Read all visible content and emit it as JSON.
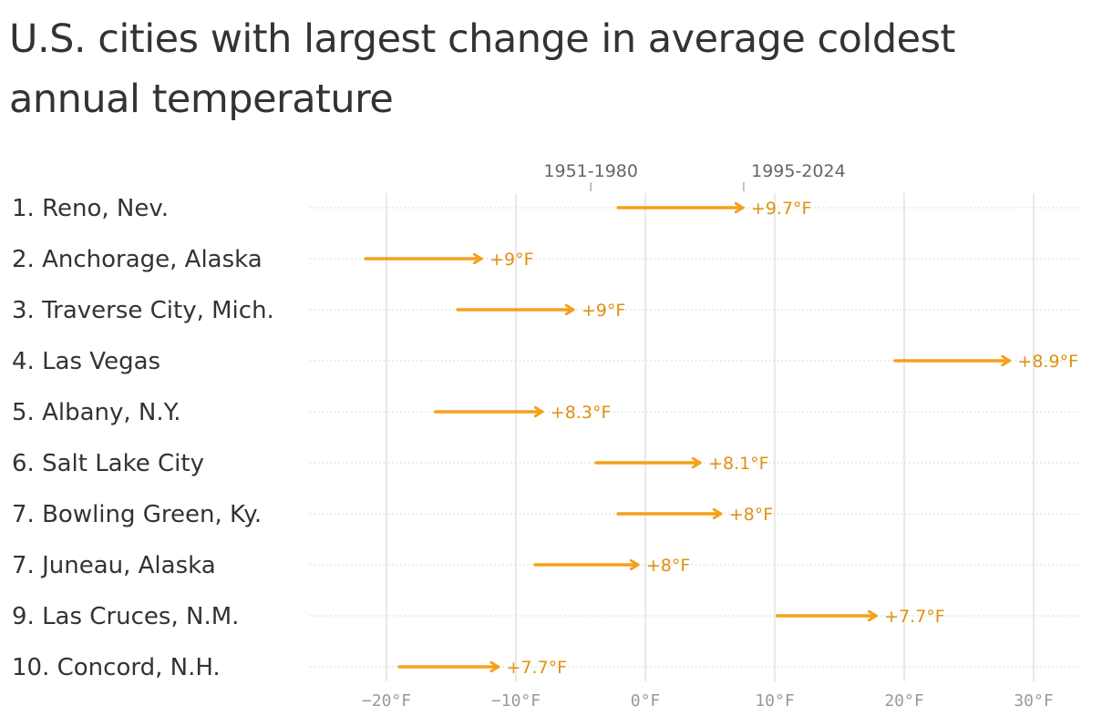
{
  "chart_data": {
    "type": "arrow",
    "title": "U.S. cities with largest change in average coldest annual temperature",
    "series_labels": {
      "start": "1951-1980",
      "end": "1995-2024"
    },
    "x_ticks": [
      {
        "value": -20,
        "label": "−20°F"
      },
      {
        "value": -10,
        "label": "−10°F"
      },
      {
        "value": 0,
        "label": "0°F"
      },
      {
        "value": 10,
        "label": "10°F"
      },
      {
        "value": 20,
        "label": "20°F"
      },
      {
        "value": 30,
        "label": "30°F"
      }
    ],
    "xlim": [
      -26,
      33
    ],
    "rows": [
      {
        "label": "1. Reno, Nev.",
        "start": -2.1,
        "end": 7.6,
        "change": "+9.7°F"
      },
      {
        "label": "2. Anchorage, Alaska",
        "start": -21.6,
        "end": -12.6,
        "change": "+9°F"
      },
      {
        "label": "3. Traverse City, Mich.",
        "start": -14.5,
        "end": -5.5,
        "change": "+9°F"
      },
      {
        "label": "4. Las Vegas",
        "start": 19.3,
        "end": 28.2,
        "change": "+8.9°F"
      },
      {
        "label": "5. Albany, N.Y.",
        "start": -16.2,
        "end": -7.9,
        "change": "+8.3°F"
      },
      {
        "label": "6. Salt Lake City",
        "start": -3.8,
        "end": 4.3,
        "change": "+8.1°F"
      },
      {
        "label": "7. Bowling Green, Ky.",
        "start": -2.1,
        "end": 5.9,
        "change": "+8°F"
      },
      {
        "label": "7. Juneau, Alaska",
        "start": -8.5,
        "end": -0.5,
        "change": "+8°F"
      },
      {
        "label": "9. Las Cruces, N.M.",
        "start": 10.2,
        "end": 17.9,
        "change": "+7.7°F"
      },
      {
        "label": "10. Concord, N.H.",
        "start": -19.0,
        "end": -11.3,
        "change": "+7.7°F"
      }
    ],
    "colors": {
      "arrow": "#f5a01a",
      "value_label": "#e0900f",
      "gridline": "#e2e2e2",
      "rowline": "#cfcfcf"
    }
  }
}
